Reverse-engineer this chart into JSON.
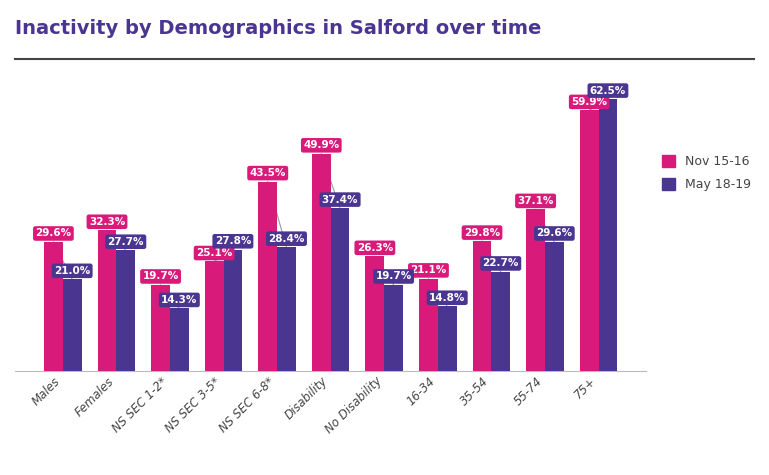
{
  "title": "Inactivity by Demographics in Salford over time",
  "categories": [
    "Males",
    "Females",
    "NS SEC 1-2*",
    "NS SEC 3-5*",
    "NS SEC 6-8*",
    "Disability",
    "No Disability",
    "16-34",
    "35-54",
    "55-74",
    "75+"
  ],
  "nov_values": [
    29.6,
    32.3,
    19.7,
    25.1,
    43.5,
    49.9,
    26.3,
    21.1,
    29.8,
    37.1,
    59.9
  ],
  "may_values": [
    21.0,
    27.7,
    14.3,
    27.8,
    28.4,
    37.4,
    19.7,
    14.8,
    22.7,
    29.6,
    62.5
  ],
  "nov_color": "#D81B7A",
  "may_color": "#4A3590",
  "background_color": "#FFFFFF",
  "title_color": "#4A3590",
  "bar_width": 0.35,
  "ylim": [
    0,
    70
  ],
  "legend_labels": [
    "Nov 15-16",
    "May 18-19"
  ],
  "label_fontsize": 7.5,
  "title_fontsize": 14,
  "xtick_fontsize": 8.5
}
